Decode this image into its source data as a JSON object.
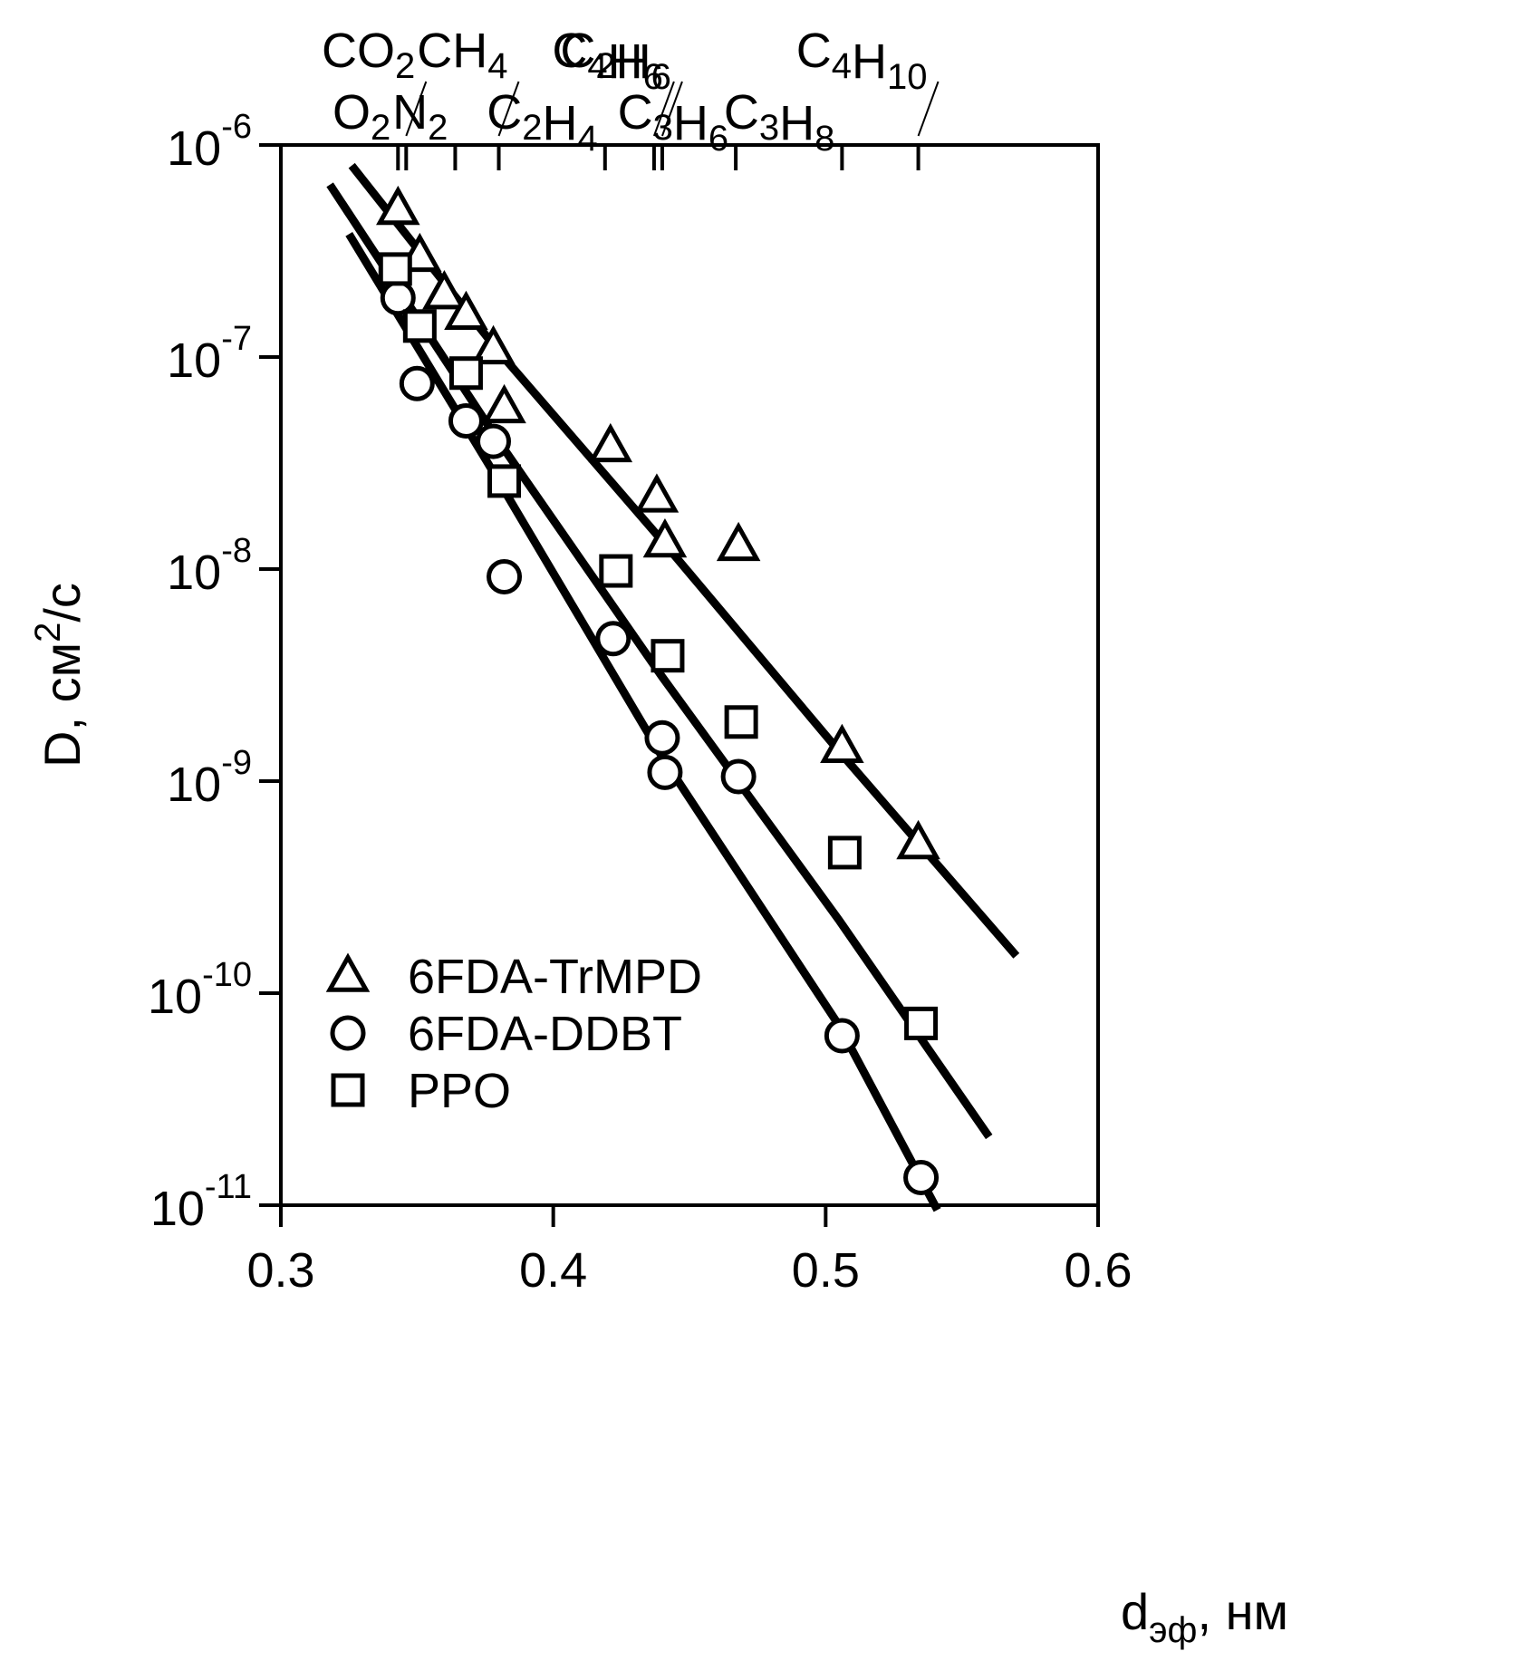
{
  "chart_data": {
    "type": "scatter",
    "title": "",
    "xlabel": "d",
    "xlabel_sub": "эф",
    "xlabel_unit": ", нм",
    "ylabel": "D, см",
    "ylabel_sup": "2",
    "ylabel_unit": "/с",
    "xlim": [
      0.3,
      0.6
    ],
    "ylim": [
      1e-11,
      1e-06
    ],
    "yscale": "log",
    "grid": false,
    "legend_position": "bottom-left",
    "x_ticks": [
      {
        "value": 0.3,
        "label": "0.3"
      },
      {
        "value": 0.4,
        "label": "0.4"
      },
      {
        "value": 0.5,
        "label": "0.5"
      },
      {
        "value": 0.6,
        "label": "0.6"
      }
    ],
    "y_ticks": [
      {
        "value": 1e-06,
        "base": "10",
        "exp": "-6"
      },
      {
        "value": 1e-07,
        "base": "10",
        "exp": "-7"
      },
      {
        "value": 1e-08,
        "base": "10",
        "exp": "-8"
      },
      {
        "value": 1e-09,
        "base": "10",
        "exp": "-9"
      },
      {
        "value": 1e-10,
        "base": "10",
        "exp": "-10"
      },
      {
        "value": 1e-11,
        "base": "10",
        "exp": "-11"
      }
    ],
    "gases": [
      {
        "d": 0.343,
        "parts": [
          [
            "O",
            ""
          ],
          [
            "",
            "2"
          ]
        ],
        "row": "low"
      },
      {
        "d": 0.346,
        "parts": [
          [
            "CO",
            ""
          ],
          [
            "",
            "2"
          ]
        ],
        "row": "high"
      },
      {
        "d": 0.364,
        "parts": [
          [
            "N",
            ""
          ],
          [
            "",
            "2"
          ]
        ],
        "row": "low"
      },
      {
        "d": 0.38,
        "parts": [
          [
            "CH",
            ""
          ],
          [
            "",
            "4"
          ]
        ],
        "row": "high"
      },
      {
        "d": 0.419,
        "parts": [
          [
            "C",
            ""
          ],
          [
            "",
            "2"
          ],
          [
            "H",
            ""
          ],
          [
            "",
            "4"
          ]
        ],
        "row": "low"
      },
      {
        "d": 0.437,
        "parts": [
          [
            "C",
            ""
          ],
          [
            "",
            "4"
          ],
          [
            "H",
            ""
          ],
          [
            "",
            "6"
          ]
        ],
        "row": "high"
      },
      {
        "d": 0.44,
        "parts": [
          [
            "C",
            ""
          ],
          [
            "",
            "2"
          ],
          [
            "H",
            ""
          ],
          [
            "",
            "6"
          ]
        ],
        "row": "high"
      },
      {
        "d": 0.467,
        "parts": [
          [
            "C",
            ""
          ],
          [
            "",
            "3"
          ],
          [
            "H",
            ""
          ],
          [
            "",
            "6"
          ]
        ],
        "row": "low"
      },
      {
        "d": 0.506,
        "parts": [
          [
            "C",
            ""
          ],
          [
            "",
            "3"
          ],
          [
            "H",
            ""
          ],
          [
            "",
            "8"
          ]
        ],
        "row": "low"
      },
      {
        "d": 0.534,
        "parts": [
          [
            "C",
            ""
          ],
          [
            "",
            "4"
          ],
          [
            "H",
            ""
          ],
          [
            "",
            "10"
          ]
        ],
        "row": "high"
      }
    ],
    "series": [
      {
        "name": "6FDA-TrMPD",
        "marker": "triangle",
        "points": [
          [
            0.343,
            5e-07
          ],
          [
            0.351,
            3e-07
          ],
          [
            0.36,
            2e-07
          ],
          [
            0.368,
            1.6e-07
          ],
          [
            0.378,
            1.1e-07
          ],
          [
            0.382,
            5.8e-08
          ],
          [
            0.421,
            3.8e-08
          ],
          [
            0.438,
            2.2e-08
          ],
          [
            0.441,
            1.35e-08
          ],
          [
            0.468,
            1.3e-08
          ],
          [
            0.506,
            1.45e-09
          ],
          [
            0.534,
            5.1e-10
          ]
        ],
        "fit": [
          [
            0.326,
            8e-07
          ],
          [
            0.38,
            1.06e-07
          ],
          [
            0.44,
            1.36e-08
          ],
          [
            0.505,
            1.38e-09
          ],
          [
            0.57,
            1.5e-10
          ]
        ]
      },
      {
        "name": "6FDA-DDBT",
        "marker": "circle",
        "points": [
          [
            0.343,
            1.9e-07
          ],
          [
            0.35,
            7.5e-08
          ],
          [
            0.368,
            5e-08
          ],
          [
            0.378,
            4e-08
          ],
          [
            0.382,
            9.2e-09
          ],
          [
            0.422,
            4.7e-09
          ],
          [
            0.44,
            1.6e-09
          ],
          [
            0.441,
            1.1e-09
          ],
          [
            0.468,
            1.05e-09
          ],
          [
            0.506,
            6.3e-11
          ],
          [
            0.535,
            1.35e-11
          ]
        ],
        "fit": [
          [
            0.325,
            3.8e-07
          ],
          [
            0.38,
            2.6e-08
          ],
          [
            0.44,
            1.3e-09
          ],
          [
            0.505,
            7e-11
          ],
          [
            0.541,
            9.5e-12
          ]
        ]
      },
      {
        "name": "PPO",
        "marker": "square",
        "points": [
          [
            0.342,
            2.6e-07
          ],
          [
            0.351,
            1.4e-07
          ],
          [
            0.368,
            8.4e-08
          ],
          [
            0.382,
            2.6e-08
          ],
          [
            0.423,
            9.8e-09
          ],
          [
            0.442,
            3.9e-09
          ],
          [
            0.469,
            1.9e-09
          ],
          [
            0.507,
            4.6e-10
          ],
          [
            0.535,
            7.2e-11
          ]
        ],
        "fit": [
          [
            0.318,
            6.5e-07
          ],
          [
            0.38,
            4e-08
          ],
          [
            0.44,
            3.1e-09
          ],
          [
            0.505,
            2.2e-10
          ],
          [
            0.56,
            2.1e-11
          ]
        ]
      }
    ]
  }
}
